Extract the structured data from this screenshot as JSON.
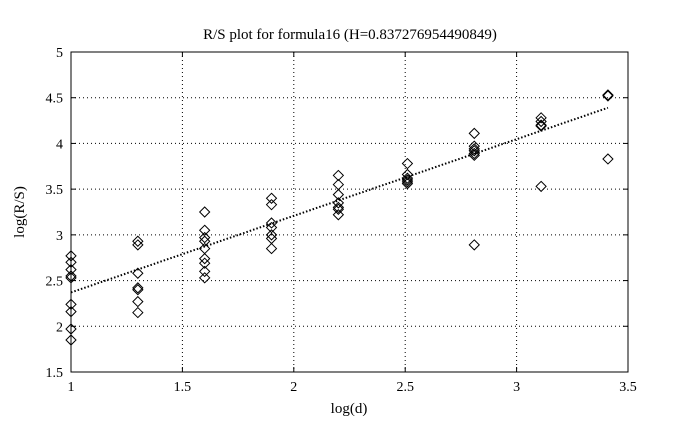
{
  "chart_data": {
    "type": "scatter",
    "title": "R/S plot for formula16 (H=0.837276954490849)",
    "xlabel": "log(d)",
    "ylabel": "log(R/S)",
    "xlim": [
      1,
      3.5
    ],
    "ylim": [
      1.5,
      5
    ],
    "xticks": [
      1,
      1.5,
      2,
      2.5,
      3,
      3.5
    ],
    "yticks": [
      1.5,
      2,
      2.5,
      3,
      3.5,
      4,
      4.5,
      5
    ],
    "xtick_labels": [
      "1",
      "1.5",
      "2",
      "2.5",
      "3",
      "3.5"
    ],
    "ytick_labels": [
      "1.5",
      "2",
      "2.5",
      "3",
      "3.5",
      "4",
      "4.5",
      "5"
    ],
    "grid": true,
    "marker": "diamond",
    "series": [
      {
        "points": [
          [
            1.0,
            2.77
          ],
          [
            1.0,
            2.7
          ],
          [
            1.0,
            2.62
          ],
          [
            1.0,
            2.55
          ],
          [
            1.0,
            2.53
          ],
          [
            1.0,
            2.24
          ],
          [
            1.0,
            2.16
          ],
          [
            1.0,
            1.97
          ],
          [
            1.0,
            1.85
          ],
          [
            1.3,
            2.93
          ],
          [
            1.3,
            2.89
          ],
          [
            1.3,
            2.58
          ],
          [
            1.3,
            2.42
          ],
          [
            1.3,
            2.4
          ],
          [
            1.3,
            2.27
          ],
          [
            1.3,
            2.15
          ],
          [
            1.6,
            3.25
          ],
          [
            1.6,
            3.05
          ],
          [
            1.6,
            2.97
          ],
          [
            1.6,
            2.93
          ],
          [
            1.6,
            2.85
          ],
          [
            1.6,
            2.74
          ],
          [
            1.6,
            2.69
          ],
          [
            1.6,
            2.6
          ],
          [
            1.6,
            2.53
          ],
          [
            1.9,
            3.4
          ],
          [
            1.9,
            3.33
          ],
          [
            1.9,
            3.13
          ],
          [
            1.9,
            3.08
          ],
          [
            1.9,
            3.0
          ],
          [
            1.9,
            2.96
          ],
          [
            1.9,
            2.85
          ],
          [
            2.2,
            3.65
          ],
          [
            2.2,
            3.55
          ],
          [
            2.2,
            3.44
          ],
          [
            2.2,
            3.35
          ],
          [
            2.2,
            3.3
          ],
          [
            2.2,
            3.28
          ],
          [
            2.2,
            3.22
          ],
          [
            2.51,
            3.78
          ],
          [
            2.51,
            3.66
          ],
          [
            2.51,
            3.62
          ],
          [
            2.51,
            3.6
          ],
          [
            2.51,
            3.58
          ],
          [
            2.51,
            3.56
          ],
          [
            2.81,
            4.11
          ],
          [
            2.81,
            3.97
          ],
          [
            2.81,
            3.94
          ],
          [
            2.81,
            3.92
          ],
          [
            2.81,
            3.89
          ],
          [
            2.81,
            3.87
          ],
          [
            2.81,
            2.89
          ],
          [
            3.11,
            4.28
          ],
          [
            3.11,
            4.24
          ],
          [
            3.11,
            4.2
          ],
          [
            3.11,
            4.19
          ],
          [
            3.11,
            3.53
          ],
          [
            3.41,
            4.53
          ],
          [
            3.41,
            4.52
          ],
          [
            3.41,
            3.83
          ]
        ]
      }
    ],
    "fit_line": {
      "style": "dotted",
      "x": [
        1.0,
        3.41
      ],
      "y": [
        2.37,
        4.39
      ]
    }
  }
}
